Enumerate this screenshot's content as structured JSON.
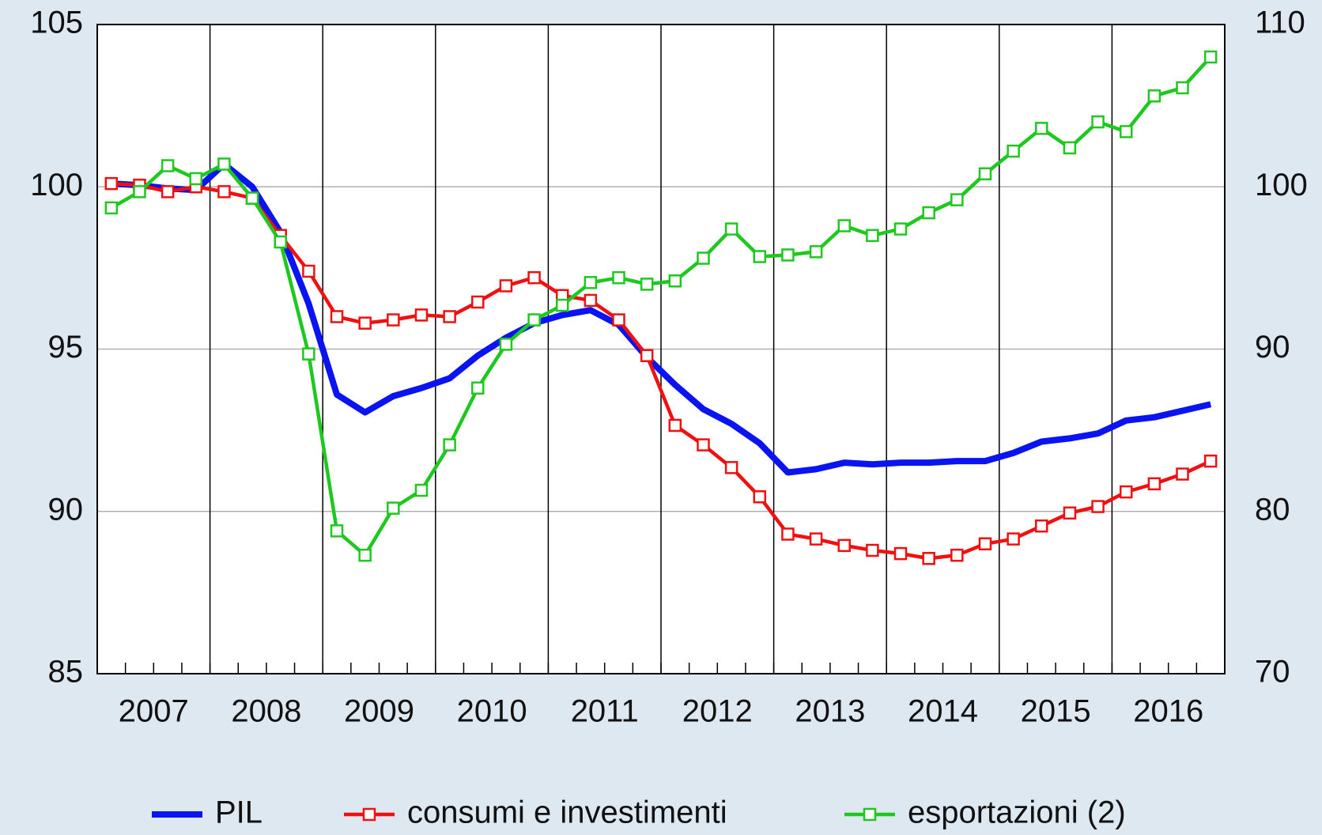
{
  "chart_data": {
    "type": "line",
    "categories": [
      "2007",
      null,
      null,
      null,
      "2008",
      null,
      null,
      null,
      "2009",
      null,
      null,
      null,
      "2010",
      null,
      null,
      null,
      "2011",
      null,
      null,
      null,
      "2012",
      null,
      null,
      null,
      "2013",
      null,
      null,
      null,
      "2014",
      null,
      null,
      null,
      "2015",
      null,
      null,
      null,
      "2016",
      null,
      null,
      null
    ],
    "ylim": [
      85,
      105
    ],
    "yticks": [
      85,
      90,
      95,
      100,
      105
    ],
    "y2lim": [
      70,
      110
    ],
    "y2ticks": [
      70,
      80,
      90,
      100,
      110
    ],
    "grid": true,
    "legend": "bottom",
    "series": [
      {
        "name": "PIL",
        "color": "#0a14f0",
        "markers": false,
        "values": [
          100.1,
          100.05,
          99.95,
          99.9,
          100.7,
          100.0,
          98.6,
          96.4,
          93.6,
          93.05,
          93.55,
          93.8,
          94.1,
          94.8,
          95.35,
          95.8,
          96.05,
          96.2,
          95.75,
          94.75,
          93.9,
          93.15,
          92.7,
          92.1,
          91.2,
          91.3,
          91.5,
          91.45,
          91.5,
          91.5,
          91.55,
          91.55,
          91.8,
          92.15,
          92.25,
          92.4,
          92.8,
          92.9,
          93.1,
          93.3
        ]
      },
      {
        "name": "consumi e investimenti",
        "color": "#f01010",
        "markers": true,
        "values": [
          100.1,
          100.05,
          99.85,
          100.0,
          99.85,
          99.65,
          98.5,
          97.4,
          96.0,
          95.8,
          95.9,
          96.05,
          96.0,
          96.45,
          96.95,
          97.2,
          96.65,
          96.5,
          95.9,
          94.8,
          92.65,
          92.05,
          91.35,
          90.45,
          89.3,
          89.15,
          88.95,
          88.8,
          88.7,
          88.55,
          88.65,
          89.0,
          89.15,
          89.55,
          89.95,
          90.15,
          90.6,
          90.85,
          91.15,
          91.55
        ]
      },
      {
        "name": "esportazioni (2)",
        "color": "#1ec81e",
        "markers": true,
        "axis": "y2",
        "values": [
          98.7,
          99.7,
          101.3,
          100.5,
          101.4,
          99.3,
          96.6,
          89.7,
          78.8,
          77.3,
          80.2,
          81.3,
          84.1,
          87.6,
          90.3,
          91.8,
          92.7,
          94.1,
          94.4,
          94.0,
          94.2,
          95.6,
          97.4,
          95.7,
          95.8,
          96.0,
          97.6,
          97.0,
          97.4,
          98.4,
          99.2,
          100.8,
          102.2,
          103.6,
          102.4,
          104.0,
          103.4,
          105.6,
          106.1,
          108.0
        ]
      }
    ]
  }
}
